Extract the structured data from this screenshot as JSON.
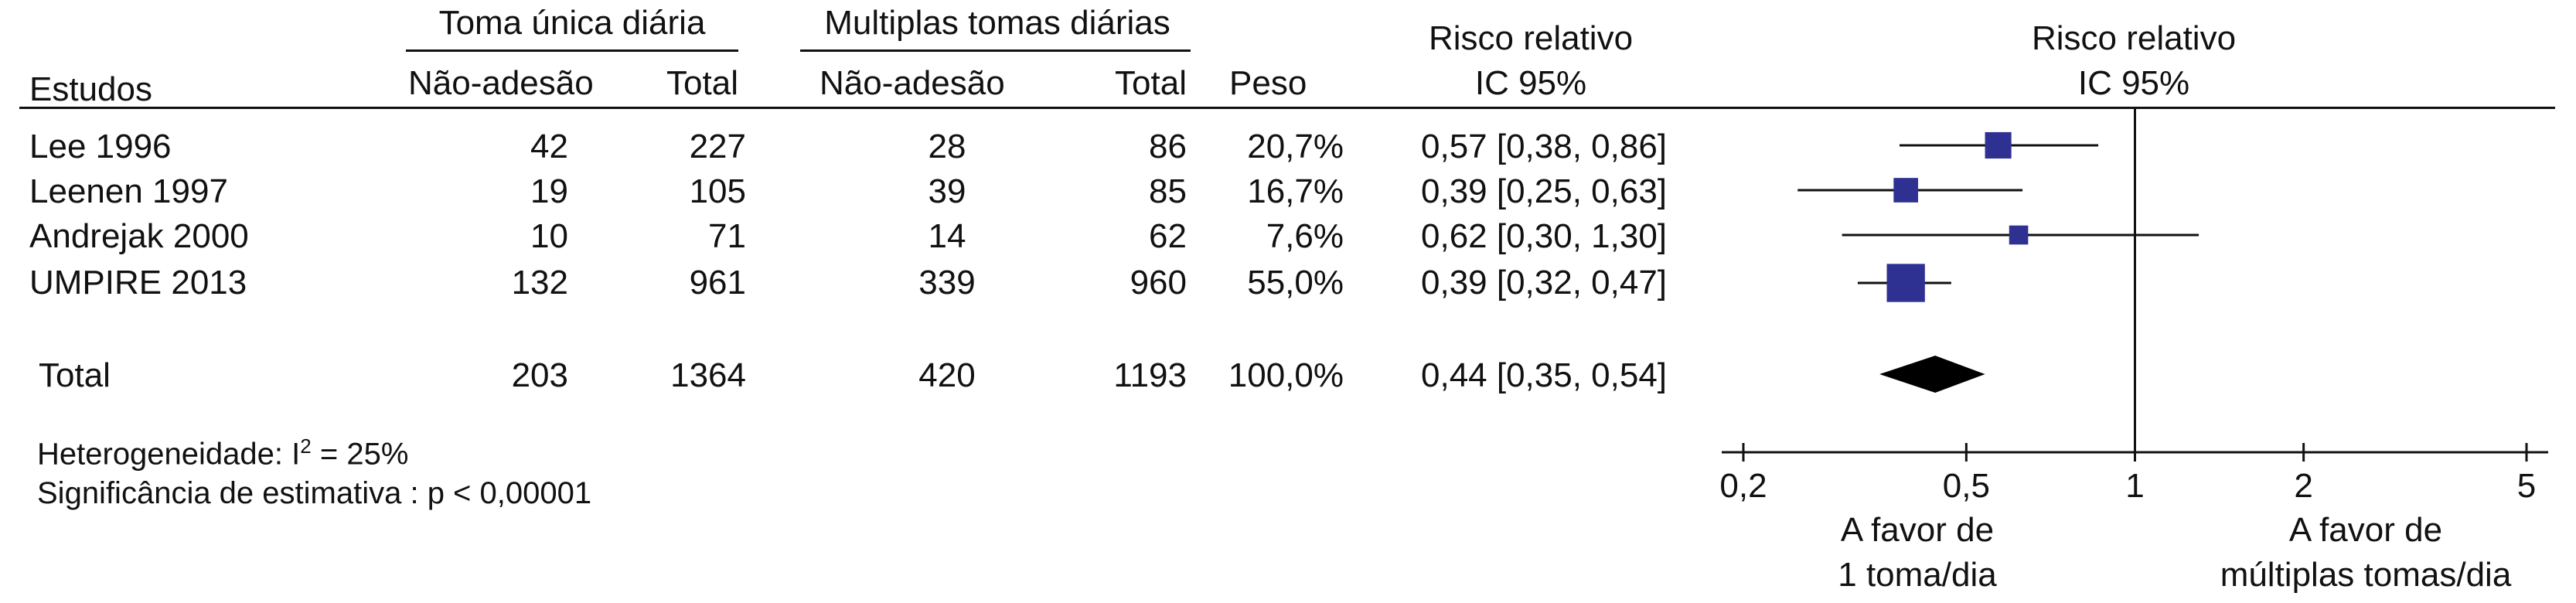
{
  "headers": {
    "group1_title": "Toma única diária",
    "group2_title": "Multiplas tomas diárias",
    "studies": "Estudos",
    "nonadherence1": "Não-adesão",
    "total1": "Total",
    "nonadherence2": "Não-adesão",
    "total2": "Total",
    "weight": "Peso",
    "rr_line1": "Risco relativo",
    "rr_line2": "IC 95%",
    "plot_line1": "Risco relativo",
    "plot_line2": "IC 95%"
  },
  "studies": [
    {
      "name": "Lee 1996",
      "events1": "42",
      "total1": "227",
      "events2": "28",
      "total2": "86",
      "weight": "20,7%",
      "ci_text": "0,57 [0,38, 0,86]"
    },
    {
      "name": "Leenen 1997",
      "events1": "19",
      "total1": "105",
      "events2": "39",
      "total2": "85",
      "weight": "16,7%",
      "ci_text": "0,39 [0,25, 0,63]"
    },
    {
      "name": "Andrejak 2000",
      "events1": "10",
      "total1": "71",
      "events2": "14",
      "total2": "62",
      "weight": "7,6%",
      "ci_text": "0,62 [0,30, 1,30]"
    },
    {
      "name": "UMPIRE 2013",
      "events1": "132",
      "total1": "961",
      "events2": "339",
      "total2": "960",
      "weight": "55,0%",
      "ci_text": "0,39 [0,32, 0,47]"
    }
  ],
  "total": {
    "name": "Total",
    "events1": "203",
    "total1": "1364",
    "events2": "420",
    "total2": "1193",
    "weight": "100,0%",
    "ci_text": "0,44 [0,35, 0,54]"
  },
  "heterogeneity_prefix": "Heterogeneidade: I",
  "heterogeneity_sup": "2",
  "heterogeneity_suffix": " = 25%",
  "significance": "Significância de estimativa : p < 0,00001",
  "favor_left_line1": "A favor de",
  "favor_left_line2": "1 toma/dia",
  "favor_right_line1": "A favor de",
  "favor_right_line2": "múltiplas tomas/dia",
  "colors": {
    "marker": "#2e3192",
    "diamond": "#000000",
    "line": "#111111"
  },
  "chart_data": {
    "type": "forest",
    "x_scale": "log",
    "xlim": [
      0.2,
      5
    ],
    "reference_line": 1,
    "ticks": [
      {
        "value": 0.2,
        "label": "0,2"
      },
      {
        "value": 0.5,
        "label": "0,5"
      },
      {
        "value": 1,
        "label": "1"
      },
      {
        "value": 2,
        "label": "2"
      },
      {
        "value": 5,
        "label": "5"
      }
    ],
    "studies": [
      {
        "name": "Lee 1996",
        "rr": 0.57,
        "lower": 0.38,
        "upper": 0.86,
        "weight": 20.7
      },
      {
        "name": "Leenen 1997",
        "rr": 0.39,
        "lower": 0.25,
        "upper": 0.63,
        "weight": 16.7
      },
      {
        "name": "Andrejak 2000",
        "rr": 0.62,
        "lower": 0.3,
        "upper": 1.3,
        "weight": 7.6
      },
      {
        "name": "UMPIRE 2013",
        "rr": 0.39,
        "lower": 0.32,
        "upper": 0.47,
        "weight": 55.0
      }
    ],
    "pooled": {
      "name": "Total",
      "rr": 0.44,
      "lower": 0.35,
      "upper": 0.54
    }
  }
}
